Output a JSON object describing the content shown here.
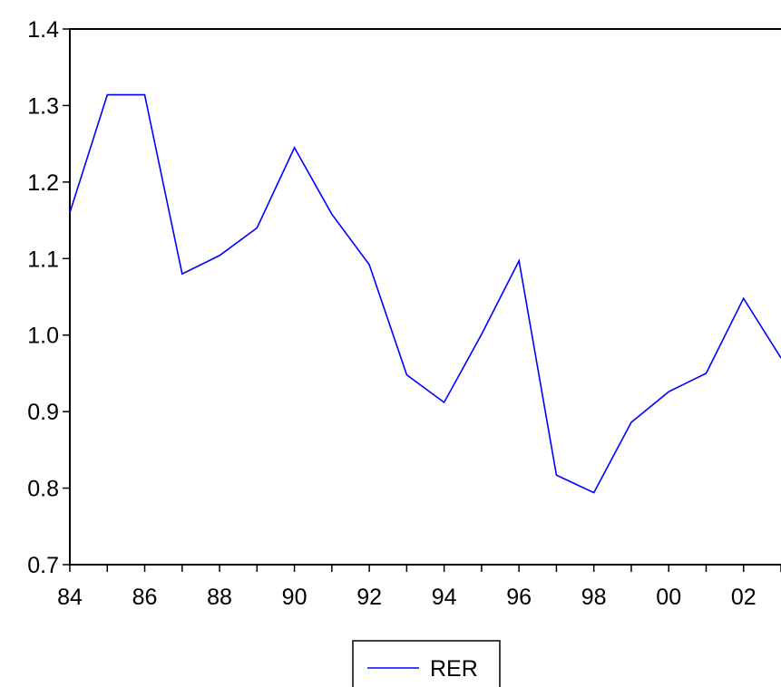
{
  "chart_data": {
    "type": "line",
    "title": "",
    "xlabel": "",
    "ylabel": "",
    "x": [
      "84",
      "85",
      "86",
      "87",
      "88",
      "89",
      "90",
      "91",
      "92",
      "93",
      "94",
      "95",
      "96",
      "97",
      "98",
      "99",
      "00",
      "01",
      "02",
      "03"
    ],
    "x_tick_labels": [
      "84",
      "86",
      "88",
      "90",
      "92",
      "94",
      "96",
      "98",
      "00",
      "02"
    ],
    "y_tick_labels": [
      "0.7",
      "0.8",
      "0.9",
      "1.0",
      "1.1",
      "1.2",
      "1.3",
      "1.4"
    ],
    "ylim": [
      0.7,
      1.4
    ],
    "grid": false,
    "legend_position": "bottom-center",
    "series": [
      {
        "name": "RER",
        "color": "#0000ff",
        "values": [
          1.16,
          1.314,
          1.314,
          1.08,
          1.104,
          1.14,
          1.245,
          1.158,
          1.092,
          0.948,
          0.912,
          1.001,
          1.097,
          0.817,
          0.794,
          0.886,
          0.926,
          0.95,
          1.048,
          0.97
        ]
      }
    ]
  }
}
